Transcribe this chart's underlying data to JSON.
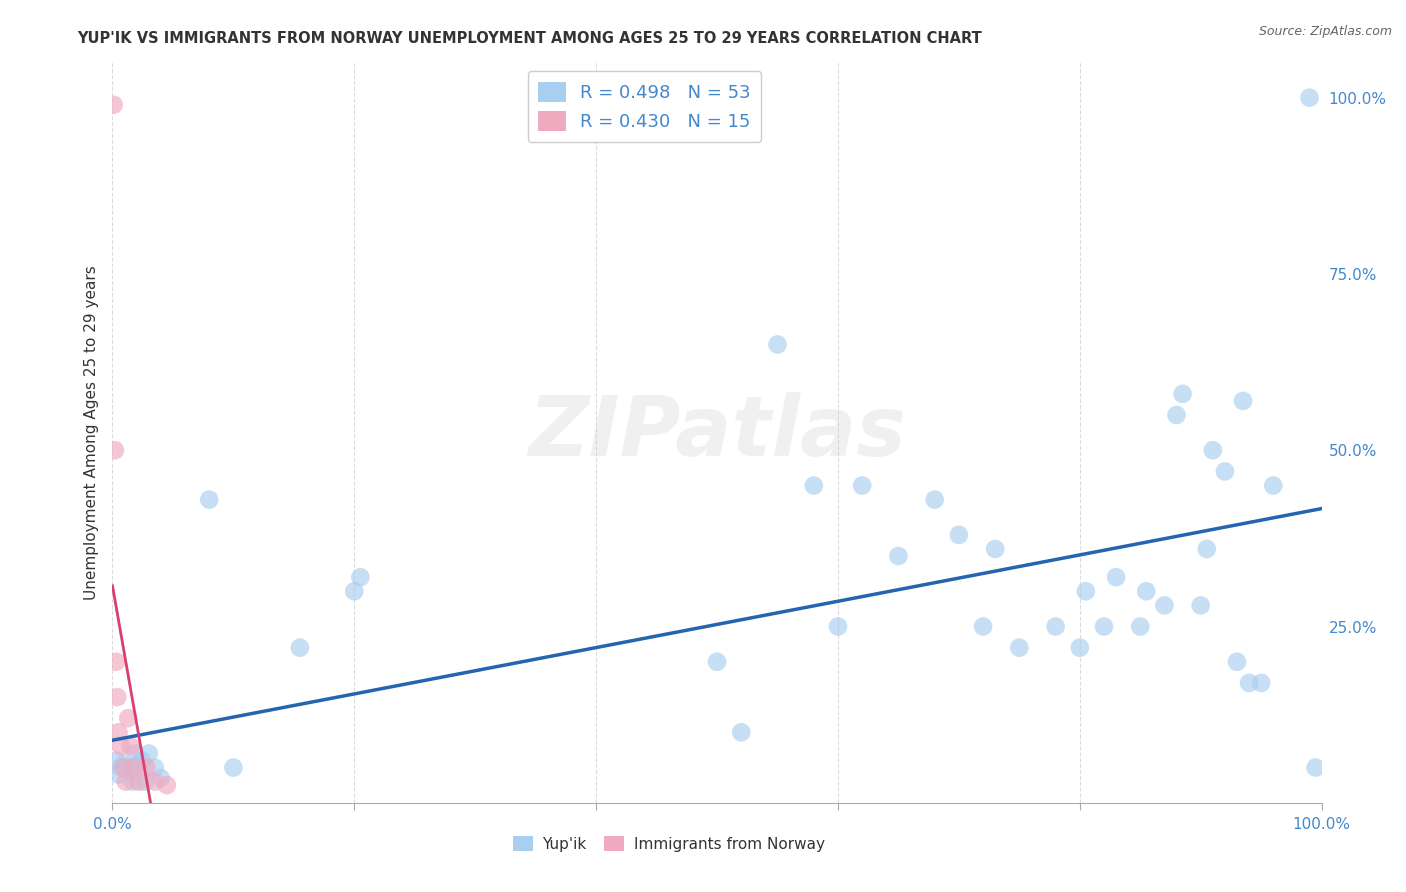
{
  "title": "YUP'IK VS IMMIGRANTS FROM NORWAY UNEMPLOYMENT AMONG AGES 25 TO 29 YEARS CORRELATION CHART",
  "source": "Source: ZipAtlas.com",
  "ylabel": "Unemployment Among Ages 25 to 29 years",
  "right_ytick_labels": [
    "25.0%",
    "50.0%",
    "75.0%",
    "100.0%"
  ],
  "right_ytick_values": [
    25,
    50,
    75,
    100
  ],
  "color_blue": "#a8cef0",
  "color_pink": "#f0aabf",
  "color_blue_line": "#2565b0",
  "color_pink_line": "#d94070",
  "color_text_blue": "#4488cc",
  "color_dark": "#333333",
  "watermark_text": "ZIPatlas",
  "yupik_x": [
    0.3,
    0.5,
    0.7,
    0.9,
    1.1,
    1.3,
    1.5,
    1.7,
    1.9,
    2.1,
    2.4,
    2.7,
    3.0,
    3.5,
    4.0,
    8.0,
    10.0,
    15.5,
    20.0,
    20.5,
    50.0,
    52.0,
    55.0,
    58.0,
    60.0,
    62.0,
    65.0,
    68.0,
    70.0,
    72.0,
    73.0,
    75.0,
    78.0,
    80.0,
    80.5,
    82.0,
    83.0,
    85.0,
    85.5,
    87.0,
    88.0,
    88.5,
    90.0,
    90.5,
    91.0,
    92.0,
    93.0,
    93.5,
    94.0,
    95.0,
    96.0,
    99.0,
    99.5
  ],
  "yupik_y": [
    6.0,
    4.0,
    5.0,
    5.5,
    5.0,
    4.5,
    5.0,
    3.0,
    7.0,
    5.5,
    6.0,
    3.0,
    7.0,
    5.0,
    3.5,
    43.0,
    5.0,
    22.0,
    30.0,
    32.0,
    20.0,
    10.0,
    65.0,
    45.0,
    25.0,
    45.0,
    35.0,
    43.0,
    38.0,
    25.0,
    36.0,
    22.0,
    25.0,
    22.0,
    30.0,
    25.0,
    32.0,
    25.0,
    30.0,
    28.0,
    55.0,
    58.0,
    28.0,
    36.0,
    50.0,
    47.0,
    20.0,
    57.0,
    17.0,
    17.0,
    45.0,
    100.0,
    5.0
  ],
  "norway_x": [
    0.1,
    0.2,
    0.3,
    0.4,
    0.5,
    0.7,
    0.9,
    1.1,
    1.3,
    1.5,
    1.8,
    2.2,
    2.8,
    3.5,
    4.5
  ],
  "norway_y": [
    99.0,
    50.0,
    20.0,
    15.0,
    10.0,
    8.0,
    5.0,
    3.0,
    12.0,
    8.0,
    5.0,
    3.0,
    5.0,
    3.0,
    2.5
  ]
}
